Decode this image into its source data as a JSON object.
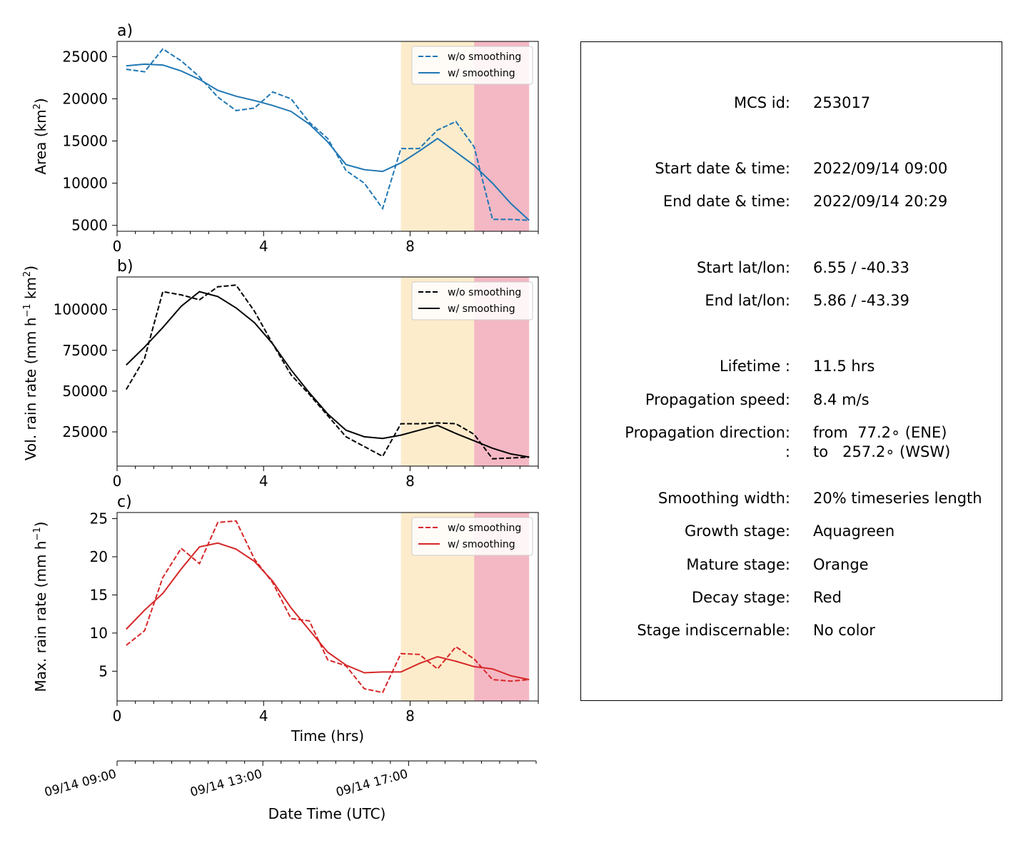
{
  "chart_data": [
    {
      "type": "line",
      "panel_label": "a)",
      "ylabel_html": "Area  (km<tspan dy='-8' font-size='13'>2</tspan><tspan dy='8'>)</tspan>",
      "xticks": [
        0,
        4,
        8
      ],
      "yticks": [
        5000,
        10000,
        15000,
        20000,
        25000
      ],
      "xlim": [
        0,
        11.5
      ],
      "ylim": [
        4300,
        26800
      ],
      "x": [
        0.25,
        0.75,
        1.25,
        1.75,
        2.25,
        2.75,
        3.25,
        3.75,
        4.25,
        4.75,
        5.25,
        5.75,
        6.25,
        6.75,
        7.25,
        7.75,
        8.25,
        8.75,
        9.25,
        9.75,
        10.25,
        10.75,
        11.25
      ],
      "series": [
        {
          "name": "w/o smoothing",
          "style": "dashed",
          "color": "#1f77b4",
          "values": [
            23500,
            23200,
            25900,
            24500,
            22600,
            20200,
            18600,
            18900,
            20800,
            20000,
            17200,
            15300,
            11500,
            10000,
            7000,
            14100,
            14100,
            16300,
            17300,
            14300,
            5700,
            5700,
            5600
          ]
        },
        {
          "name": "w/ smoothing",
          "style": "solid",
          "color": "#1f77b4",
          "values": [
            23900,
            24100,
            24000,
            23300,
            22300,
            21000,
            20300,
            19800,
            19200,
            18500,
            17000,
            14900,
            12200,
            11600,
            11400,
            12400,
            13800,
            15300,
            13700,
            12100,
            10000,
            7600,
            5600
          ]
        }
      ],
      "stages": [
        {
          "name": "Mature stage",
          "x0": 7.75,
          "x1": 9.75,
          "color": "#fdeccc"
        },
        {
          "name": "Decay stage",
          "x0": 9.75,
          "x1": 11.25,
          "color": "#f4b8c4"
        }
      ]
    },
    {
      "type": "line",
      "panel_label": "b)",
      "ylabel_html": "Vol. rain rate (mm h<tspan dy='-8' font-size='13'>−1</tspan><tspan dy='8'> km</tspan><tspan dy='-8' font-size='13'>2</tspan><tspan dy='8'>)</tspan>",
      "xticks": [
        0,
        4,
        8
      ],
      "yticks": [
        25000,
        50000,
        75000,
        100000
      ],
      "xlim": [
        0,
        11.5
      ],
      "ylim": [
        4000,
        120000
      ],
      "x": [
        0.25,
        0.75,
        1.25,
        1.75,
        2.25,
        2.75,
        3.25,
        3.75,
        4.25,
        4.75,
        5.25,
        5.75,
        6.25,
        6.75,
        7.25,
        7.75,
        8.25,
        8.75,
        9.25,
        9.75,
        10.25,
        10.75,
        11.25
      ],
      "series": [
        {
          "name": "w/o smoothing",
          "style": "dashed",
          "color": "#000000",
          "values": [
            51000,
            70000,
            111000,
            109000,
            106000,
            114000,
            115000,
            99000,
            79000,
            60000,
            48000,
            35000,
            22000,
            16000,
            10000,
            30000,
            30000,
            30500,
            30000,
            23500,
            8500,
            9000,
            9500
          ]
        },
        {
          "name": "w/ smoothing",
          "style": "solid",
          "color": "#000000",
          "values": [
            66000,
            77000,
            89000,
            102000,
            111000,
            108000,
            101000,
            92000,
            79000,
            63000,
            49000,
            36000,
            26000,
            22000,
            21000,
            23000,
            26000,
            29000,
            24000,
            19500,
            15000,
            11500,
            9500
          ]
        }
      ],
      "stages": [
        {
          "name": "Mature stage",
          "x0": 7.75,
          "x1": 9.75,
          "color": "#fdeccc"
        },
        {
          "name": "Decay stage",
          "x0": 9.75,
          "x1": 11.25,
          "color": "#f4b8c4"
        }
      ]
    },
    {
      "type": "line",
      "panel_label": "c)",
      "ylabel_html": "Max. rain rate  (mm h<tspan dy='-8' font-size='13'>−1</tspan><tspan dy='8'>)</tspan>",
      "xticks": [
        0,
        4,
        8
      ],
      "yticks": [
        5,
        10,
        15,
        20,
        25
      ],
      "xlim": [
        0,
        11.5
      ],
      "ylim": [
        1.1,
        25.8
      ],
      "x": [
        0.25,
        0.75,
        1.25,
        1.75,
        2.25,
        2.75,
        3.25,
        3.75,
        4.25,
        4.75,
        5.25,
        5.75,
        6.25,
        6.75,
        7.25,
        7.75,
        8.25,
        8.75,
        9.25,
        9.75,
        10.25,
        10.75,
        11.25
      ],
      "series": [
        {
          "name": "w/o smoothing",
          "style": "dashed",
          "color": "#d62728",
          "values": [
            8.4,
            10.3,
            17.3,
            21.1,
            19.1,
            24.5,
            24.7,
            19.7,
            16.6,
            11.9,
            11.6,
            6.5,
            5.7,
            2.7,
            2.2,
            7.3,
            7.2,
            5.3,
            8.2,
            6.6,
            3.9,
            3.7,
            3.9
          ]
        },
        {
          "name": "w/ smoothing",
          "style": "solid",
          "color": "#d62728",
          "values": [
            10.5,
            13.0,
            15.2,
            18.4,
            21.3,
            21.8,
            21.0,
            19.4,
            16.8,
            13.3,
            10.4,
            7.5,
            5.8,
            4.8,
            4.9,
            4.9,
            6.0,
            6.9,
            6.3,
            5.6,
            5.3,
            4.4,
            3.9
          ]
        }
      ],
      "stages": [
        {
          "name": "Mature stage",
          "x0": 7.75,
          "x1": 9.75,
          "color": "#fdeccc"
        },
        {
          "name": "Decay stage",
          "x0": 9.75,
          "x1": 11.25,
          "color": "#f4b8c4"
        }
      ],
      "xlabel": "Time (hrs)"
    }
  ],
  "datetime_axis": {
    "xlabel": "Date Time (UTC)",
    "ticks": [
      {
        "x": 0,
        "label": "09/14 09:00"
      },
      {
        "x": 4,
        "label": "09/14 13:00"
      },
      {
        "x": 8,
        "label": "09/14 17:00"
      }
    ]
  },
  "info": {
    "mcs_id_label": "MCS id:",
    "mcs_id": "253017",
    "start_time_label": "Start date & time:",
    "start_time": "2022/09/14 09:00",
    "end_time_label": "End date & time:",
    "end_time": "2022/09/14 20:29",
    "start_latlon_label": "Start lat/lon:",
    "start_latlon": "6.55 / -40.33",
    "end_latlon_label": "End lat/lon:",
    "end_latlon": "5.86 / -43.39",
    "lifetime_label": "Lifetime :",
    "lifetime": "11.5 hrs",
    "speed_label": "Propagation speed:",
    "speed": "8.4 m/s",
    "direction_label": "Propagation direction:",
    "direction_from": "from  77.2∘ (ENE)",
    "direction_label2": ":",
    "direction_to": "to   257.2∘ (WSW)",
    "smoothing_label": "Smoothing width:",
    "smoothing": "20% timeseries length",
    "growth_label": "Growth stage:",
    "growth": "Aquagreen",
    "mature_label": "Mature stage:",
    "mature": "Orange",
    "decay_label": "Decay stage:",
    "decay": "Red",
    "indisc_label": "Stage indiscernable:",
    "indisc": "No color"
  }
}
